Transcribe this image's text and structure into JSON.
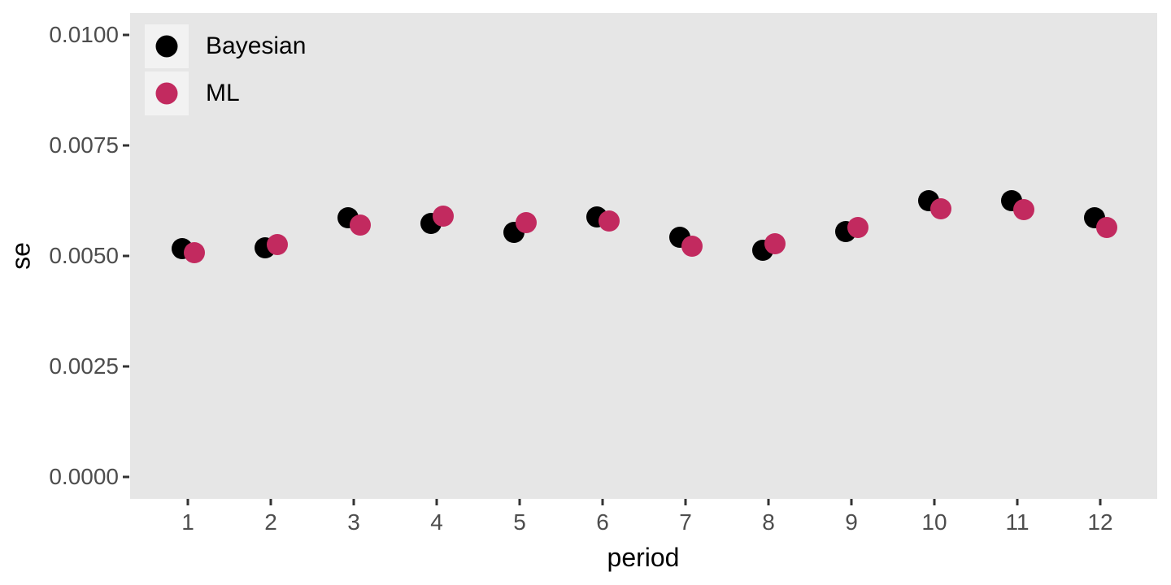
{
  "chart_data": {
    "type": "scatter",
    "title": "",
    "xlabel": "period",
    "ylabel": "se",
    "x": [
      1,
      2,
      3,
      4,
      5,
      6,
      7,
      8,
      9,
      10,
      11,
      12
    ],
    "xtick_labels": [
      "1",
      "2",
      "3",
      "4",
      "5",
      "6",
      "7",
      "8",
      "9",
      "10",
      "11",
      "12"
    ],
    "series": [
      {
        "name": "Bayesian",
        "color": "#000000",
        "values": [
          0.00517,
          0.00519,
          0.00587,
          0.00574,
          0.00554,
          0.00589,
          0.00543,
          0.00512,
          0.00555,
          0.00626,
          0.00626,
          0.00587
        ]
      },
      {
        "name": "ML",
        "color": "#C22A5F",
        "values": [
          0.00508,
          0.00525,
          0.00569,
          0.00591,
          0.00576,
          0.0058,
          0.00522,
          0.00527,
          0.00564,
          0.00607,
          0.00604,
          0.00565
        ]
      }
    ],
    "ylim": [
      -0.0005,
      0.0105
    ],
    "yticks": [
      0.0,
      0.0025,
      0.005,
      0.0075,
      0.01
    ],
    "ytick_labels": [
      "0.0000",
      "0.0025",
      "0.0050",
      "0.0075",
      "0.0100"
    ],
    "grid": false,
    "dodge": true,
    "legend_position": "inside-top-left",
    "colors": {
      "figure_background": "#FFFFFF",
      "panel_background": "#E6E6E6",
      "legend_key_background": "#F2F2F2",
      "tick_label": "#4D4D4D",
      "tick_mark": "#333333",
      "axis_title": "#000000"
    }
  }
}
